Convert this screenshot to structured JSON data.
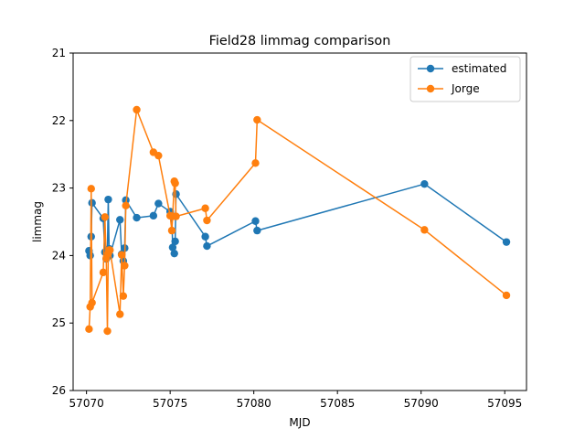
{
  "chart_data": {
    "type": "line",
    "title": "Field28 limmag comparison",
    "xlabel": "MJD",
    "ylabel": "limmag",
    "xlim": [
      57069.2,
      57096.3
    ],
    "ylim": [
      26,
      21
    ],
    "y_inverted": true,
    "x_ticks": [
      57070,
      57075,
      57080,
      57085,
      57090,
      57095
    ],
    "y_ticks": [
      21,
      22,
      23,
      24,
      25,
      26
    ],
    "grid": false,
    "legend_position": "top-right",
    "series": [
      {
        "name": "estimated",
        "color": "#1f77b4",
        "marker": "circle",
        "x": [
          57070.15,
          57070.22,
          57070.28,
          57070.33,
          57071.0,
          57071.1,
          57071.18,
          57071.25,
          57071.3,
          57071.35,
          57071.4,
          57072.0,
          57072.1,
          57072.2,
          57072.28,
          57072.35,
          57073.0,
          57074.0,
          57074.3,
          57075.0,
          57075.1,
          57075.15,
          57075.25,
          57075.3,
          57075.35,
          57077.1,
          57077.2,
          57080.1,
          57080.2,
          57090.2,
          57095.1
        ],
        "y": [
          23.93,
          24.0,
          23.72,
          23.22,
          23.45,
          23.95,
          24.05,
          23.92,
          23.17,
          23.9,
          24.0,
          23.47,
          23.98,
          24.08,
          23.89,
          23.18,
          23.44,
          23.41,
          23.23,
          23.35,
          23.41,
          23.88,
          23.97,
          23.79,
          23.09,
          23.72,
          23.86,
          23.49,
          23.63,
          22.94,
          23.8
        ]
      },
      {
        "name": "Jorge",
        "color": "#ff7f0e",
        "marker": "circle",
        "x": [
          57070.15,
          57070.22,
          57070.28,
          57070.33,
          57071.0,
          57071.1,
          57071.18,
          57071.25,
          57071.3,
          57071.35,
          57071.4,
          57072.0,
          57072.1,
          57072.2,
          57072.28,
          57072.35,
          57073.0,
          57074.0,
          57074.3,
          57075.0,
          57075.1,
          57075.15,
          57075.25,
          57075.3,
          57075.35,
          57077.1,
          57077.2,
          57080.1,
          57080.2,
          57090.2,
          57095.1
        ],
        "y": [
          25.09,
          24.76,
          23.01,
          24.7,
          24.25,
          23.43,
          24.04,
          25.12,
          23.97,
          23.92,
          23.92,
          24.87,
          23.99,
          24.6,
          24.15,
          23.26,
          21.84,
          22.47,
          22.52,
          23.41,
          23.63,
          23.42,
          22.9,
          22.93,
          23.42,
          23.3,
          23.48,
          22.63,
          21.99,
          23.62,
          24.59
        ]
      }
    ]
  }
}
